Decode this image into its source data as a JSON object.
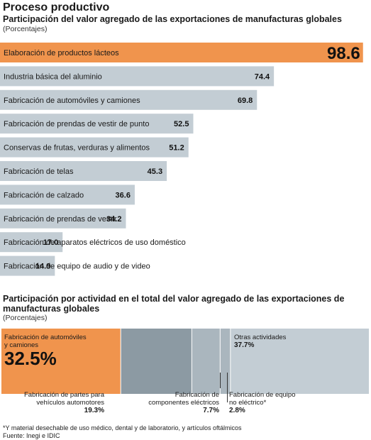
{
  "header": {
    "main_title": "Proceso productivo",
    "bar_title": "Participación del valor agregado de las exportaciones de manufacturas globales",
    "bar_unit": "(Porcentajes)",
    "stack_title": "Participación por actividad en el total del valor agregado de las exportaciones de manufacturas globales",
    "stack_unit": "(Porcentajes)"
  },
  "colors": {
    "highlight": "#f0944d",
    "bar": "#c3cdd4",
    "dark_segment": "#8c9aa3",
    "mid_segment": "#aab6be"
  },
  "chart_data": [
    {
      "type": "bar",
      "orientation": "horizontal",
      "title": "Participación del valor agregado de las exportaciones de manufacturas globales",
      "unit": "(Porcentajes)",
      "categories": [
        "Elaboración de productos lácteos",
        "Industria básica del aluminio",
        "Fabricación de automóviles y camiones",
        "Fabricación de prendas de vestir de punto",
        "Conservas de frutas, verduras y alimentos",
        "Fabricación de telas",
        "Fabricación de calzado",
        "Fabricación de prendas de vestir",
        "Fabricación de aparatos eléctricos de uso doméstico",
        "Fabricación de equipo de audio y de video"
      ],
      "values": [
        98.6,
        74.4,
        69.8,
        52.5,
        51.2,
        45.3,
        36.6,
        34.2,
        17.0,
        14.9
      ],
      "value_labels": [
        "98.6",
        "74.4",
        "69.8",
        "52.5",
        "51.2",
        "45.3",
        "36.6",
        "34.2",
        "17.0",
        "14.9"
      ],
      "xlim": [
        0,
        100
      ],
      "highlighted_index": 0
    },
    {
      "type": "bar",
      "orientation": "stacked-horizontal",
      "title": "Participación por actividad en el total del valor agregado de las exportaciones de manufacturas globales",
      "unit": "(Porcentajes)",
      "segments": [
        {
          "label": "Fabricación de automóviles y camiones",
          "value": 32.5,
          "value_label": "32.5%"
        },
        {
          "label": "Fabricación de partes para vehículos automotores",
          "value": 19.3,
          "value_label": "19.3%"
        },
        {
          "label": "Fabricación de componentes eléctricos",
          "value": 7.7,
          "value_label": "7.7%"
        },
        {
          "label": "Fabricación de equipo no eléctrico*",
          "value": 2.8,
          "value_label": "2.8%"
        },
        {
          "label": "Otras actividades",
          "value": 37.7,
          "value_label": "37.7%"
        }
      ],
      "total": 100
    }
  ],
  "stack_labels": {
    "auto_l1": "Fabricación de automóviles",
    "auto_l2": "y camiones",
    "parts_l1": "Fabricación de partes para",
    "parts_l2": "vehículos automotores",
    "comp_l1": "Fabricación de",
    "comp_l2": "componentes eléctricos",
    "equip_l1": "Fabricación de equipo",
    "equip_l2": "no eléctrico*",
    "other": "Otras actividades"
  },
  "footnote": "*Y material desechable de uso médico, dental y de laboratorio, y artículos oftálmicos",
  "source": "Fuente: Inegi e IDIC"
}
